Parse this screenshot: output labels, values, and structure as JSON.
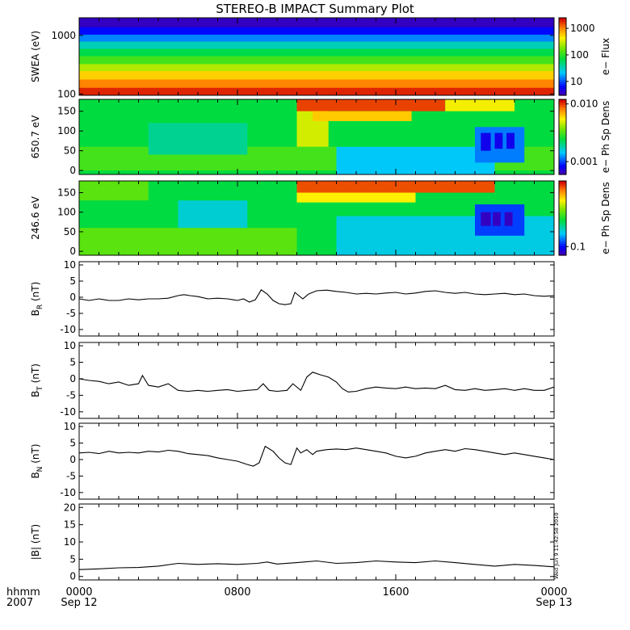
{
  "title": "STEREO-B IMPACT Summary Plot",
  "timestamp": "Wed Jun  9 11:42:58 2010",
  "chart_data": [
    {
      "type": "heatmap",
      "ylabel": "SWEA (eV)",
      "yscale": "log",
      "ylim": [
        95,
        2000
      ],
      "yticks": [
        {
          "v": 1000,
          "label": "1000"
        },
        {
          "v": 100,
          "label": "100"
        }
      ],
      "colorbar": {
        "label": "e− Flux",
        "scale": "log",
        "range": [
          3,
          2500
        ],
        "ticks": [
          {
            "v": 1000,
            "label": "1000"
          },
          {
            "v": 100,
            "label": "100"
          },
          {
            "v": 10,
            "label": "10"
          }
        ]
      },
      "rows": [
        {
          "from": 95,
          "to": 130,
          "value": 2000
        },
        {
          "from": 130,
          "to": 180,
          "value": 1100
        },
        {
          "from": 180,
          "to": 250,
          "value": 600
        },
        {
          "from": 250,
          "to": 330,
          "value": 280
        },
        {
          "from": 330,
          "to": 450,
          "value": 130
        },
        {
          "from": 450,
          "to": 600,
          "value": 70
        },
        {
          "from": 600,
          "to": 800,
          "value": 35
        },
        {
          "from": 800,
          "to": 1050,
          "value": 15
        },
        {
          "from": 1050,
          "to": 1400,
          "value": 7
        },
        {
          "from": 1400,
          "to": 2000,
          "value": 4
        }
      ]
    },
    {
      "type": "heatmap",
      "ylabel": "650.7 eV",
      "ylim": [
        -10,
        180
      ],
      "yticks": [
        {
          "v": 150,
          "label": "150"
        },
        {
          "v": 100,
          "label": "100"
        },
        {
          "v": 50,
          "label": "50"
        },
        {
          "v": 0,
          "label": "0"
        }
      ],
      "colorbar": {
        "label": "e− Ph Sp Dens",
        "scale": "log",
        "range": [
          0.0006,
          0.012
        ],
        "ticks": [
          {
            "v": 0.01,
            "label": "0.010"
          },
          {
            "v": 0.001,
            "label": "0.001"
          }
        ]
      },
      "background": 0.0025,
      "features": [
        {
          "t": [
            0.0,
            24.0
          ],
          "pa": [
            0,
            60
          ],
          "value": 0.0032
        },
        {
          "t": [
            3.5,
            8.5
          ],
          "pa": [
            40,
            120
          ],
          "value": 0.002
        },
        {
          "t": [
            11.0,
            12.6
          ],
          "pa": [
            60,
            180
          ],
          "value": 0.005
        },
        {
          "t": [
            11.0,
            18.5
          ],
          "pa": [
            150,
            180
          ],
          "value": 0.01
        },
        {
          "t": [
            11.8,
            16.8
          ],
          "pa": [
            125,
            150
          ],
          "value": 0.0065
        },
        {
          "t": [
            13.0,
            21.0
          ],
          "pa": [
            -10,
            60
          ],
          "value": 0.0015
        },
        {
          "t": [
            18.5,
            22.0
          ],
          "pa": [
            150,
            180
          ],
          "value": 0.0055
        },
        {
          "t": [
            20.0,
            22.5
          ],
          "pa": [
            20,
            110
          ],
          "value": 0.0012
        },
        {
          "t": [
            20.3,
            20.8
          ],
          "pa": [
            50,
            95
          ],
          "value": 0.0008
        },
        {
          "t": [
            21.0,
            21.4
          ],
          "pa": [
            55,
            95
          ],
          "value": 0.0008
        },
        {
          "t": [
            21.6,
            22.0
          ],
          "pa": [
            55,
            95
          ],
          "value": 0.0008
        }
      ]
    },
    {
      "type": "heatmap",
      "ylabel": "246.6 eV",
      "ylim": [
        -10,
        180
      ],
      "yticks": [
        {
          "v": 150,
          "label": "150"
        },
        {
          "v": 100,
          "label": "100"
        },
        {
          "v": 50,
          "label": "50"
        },
        {
          "v": 0,
          "label": "0"
        }
      ],
      "colorbar": {
        "label": "e− Ph Sp Dens",
        "scale": "log",
        "range": [
          0.07,
          1.5
        ],
        "ticks": [
          {
            "v": 0.1,
            "label": "0.1"
          }
        ]
      },
      "background": 0.3,
      "features": [
        {
          "t": [
            0.0,
            11.0
          ],
          "pa": [
            -10,
            60
          ],
          "value": 0.42
        },
        {
          "t": [
            0.0,
            3.5
          ],
          "pa": [
            130,
            180
          ],
          "value": 0.42
        },
        {
          "t": [
            5.0,
            8.5
          ],
          "pa": [
            60,
            130
          ],
          "value": 0.2
        },
        {
          "t": [
            11.0,
            21.0
          ],
          "pa": [
            150,
            180
          ],
          "value": 1.2
        },
        {
          "t": [
            11.0,
            17.0
          ],
          "pa": [
            125,
            150
          ],
          "value": 0.7
        },
        {
          "t": [
            13.0,
            24.0
          ],
          "pa": [
            -10,
            90
          ],
          "value": 0.19
        },
        {
          "t": [
            20.0,
            22.5
          ],
          "pa": [
            40,
            120
          ],
          "value": 0.12
        },
        {
          "t": [
            20.3,
            20.8
          ],
          "pa": [
            65,
            100
          ],
          "value": 0.08
        },
        {
          "t": [
            20.9,
            21.3
          ],
          "pa": [
            65,
            100
          ],
          "value": 0.08
        },
        {
          "t": [
            21.5,
            21.9
          ],
          "pa": [
            65,
            100
          ],
          "value": 0.08
        }
      ]
    },
    {
      "type": "line",
      "ylabel_main": "B",
      "ylabel_sub": "R",
      "ylabel_unit": " (nT)",
      "ylim": [
        -12,
        11
      ],
      "yticks": [
        {
          "v": 10,
          "label": "10"
        },
        {
          "v": 5,
          "label": "5"
        },
        {
          "v": 0,
          "label": "0"
        },
        {
          "v": -5,
          "label": "-5"
        },
        {
          "v": -10,
          "label": "-10"
        }
      ],
      "x": [
        0,
        0.5,
        1.0,
        1.5,
        2.0,
        2.5,
        3.0,
        3.5,
        4.0,
        4.5,
        5.0,
        5.3,
        5.6,
        6.0,
        6.5,
        7.0,
        7.5,
        7.8,
        8.0,
        8.3,
        8.6,
        8.9,
        9.2,
        9.5,
        9.8,
        10.1,
        10.4,
        10.7,
        10.9,
        11.1,
        11.3,
        11.6,
        12.0,
        12.5,
        13.0,
        13.5,
        14.0,
        14.5,
        15.0,
        15.5,
        16.0,
        16.5,
        17.0,
        17.5,
        18.0,
        18.5,
        19.0,
        19.5,
        20.0,
        20.5,
        21.0,
        21.5,
        22.0,
        22.5,
        23.0,
        23.5,
        24.0
      ],
      "y": [
        -0.5,
        -1.0,
        -0.5,
        -1.0,
        -1.0,
        -0.5,
        -0.8,
        -0.5,
        -0.5,
        -0.3,
        0.5,
        0.8,
        0.5,
        0.2,
        -0.5,
        -0.3,
        -0.5,
        -0.8,
        -1.0,
        -0.5,
        -1.5,
        -0.8,
        2.3,
        1.0,
        -1.0,
        -2.0,
        -2.3,
        -2.0,
        1.5,
        0.5,
        -0.5,
        1.0,
        2.0,
        2.2,
        1.8,
        1.5,
        1.0,
        1.2,
        1.0,
        1.3,
        1.5,
        1.0,
        1.3,
        1.8,
        2.0,
        1.5,
        1.2,
        1.5,
        1.0,
        0.8,
        1.0,
        1.2,
        0.8,
        1.0,
        0.5,
        0.3,
        0.5
      ]
    },
    {
      "type": "line",
      "ylabel_main": "B",
      "ylabel_sub": "T",
      "ylabel_unit": " (nT)",
      "ylim": [
        -12,
        11
      ],
      "yticks": [
        {
          "v": 10,
          "label": "10"
        },
        {
          "v": 5,
          "label": "5"
        },
        {
          "v": 0,
          "label": "0"
        },
        {
          "v": -5,
          "label": "-5"
        },
        {
          "v": -10,
          "label": "-10"
        }
      ],
      "x": [
        0,
        0.5,
        1.0,
        1.5,
        2.0,
        2.5,
        3.0,
        3.2,
        3.5,
        4.0,
        4.5,
        5.0,
        5.5,
        6.0,
        6.5,
        7.0,
        7.5,
        8.0,
        8.5,
        9.0,
        9.3,
        9.6,
        10.0,
        10.5,
        10.8,
        11.2,
        11.5,
        11.8,
        12.2,
        12.6,
        13.0,
        13.3,
        13.6,
        14.0,
        14.5,
        15.0,
        15.5,
        16.0,
        16.5,
        17.0,
        17.5,
        18.0,
        18.5,
        19.0,
        19.5,
        20.0,
        20.5,
        21.0,
        21.5,
        22.0,
        22.5,
        23.0,
        23.5,
        24.0
      ],
      "y": [
        0.0,
        -0.5,
        -0.8,
        -1.5,
        -1.0,
        -2.0,
        -1.5,
        1.0,
        -2.0,
        -2.5,
        -1.5,
        -3.5,
        -3.8,
        -3.5,
        -3.8,
        -3.5,
        -3.3,
        -3.8,
        -3.5,
        -3.3,
        -1.5,
        -3.5,
        -3.8,
        -3.5,
        -1.5,
        -3.5,
        0.5,
        2.0,
        1.2,
        0.5,
        -1.0,
        -3.0,
        -4.0,
        -3.8,
        -3.0,
        -2.5,
        -2.8,
        -3.0,
        -2.5,
        -3.0,
        -2.8,
        -3.0,
        -2.0,
        -3.3,
        -3.5,
        -3.0,
        -3.5,
        -3.3,
        -3.0,
        -3.5,
        -3.0,
        -3.5,
        -3.5,
        -2.5
      ]
    },
    {
      "type": "line",
      "ylabel_main": "B",
      "ylabel_sub": "N",
      "ylabel_unit": " (nT)",
      "ylim": [
        -12,
        11
      ],
      "yticks": [
        {
          "v": 10,
          "label": "10"
        },
        {
          "v": 5,
          "label": "5"
        },
        {
          "v": 0,
          "label": "0"
        },
        {
          "v": -5,
          "label": "-5"
        },
        {
          "v": -10,
          "label": "-10"
        }
      ],
      "x": [
        0,
        0.5,
        1.0,
        1.5,
        2.0,
        2.5,
        3.0,
        3.5,
        4.0,
        4.5,
        5.0,
        5.5,
        6.0,
        6.5,
        7.0,
        7.5,
        8.0,
        8.5,
        8.8,
        9.1,
        9.4,
        9.8,
        10.1,
        10.4,
        10.7,
        11.0,
        11.2,
        11.5,
        11.8,
        12.0,
        12.5,
        13.0,
        13.5,
        14.0,
        14.5,
        15.0,
        15.5,
        16.0,
        16.5,
        17.0,
        17.5,
        18.0,
        18.5,
        19.0,
        19.5,
        20.0,
        20.5,
        21.0,
        21.5,
        22.0,
        22.5,
        23.0,
        23.5,
        24.0
      ],
      "y": [
        2.0,
        2.2,
        1.8,
        2.5,
        2.0,
        2.2,
        2.0,
        2.5,
        2.3,
        2.8,
        2.5,
        1.8,
        1.5,
        1.2,
        0.5,
        0.0,
        -0.5,
        -1.5,
        -2.0,
        -1.0,
        4.0,
        2.5,
        0.5,
        -1.0,
        -1.5,
        3.5,
        2.0,
        3.0,
        1.5,
        2.5,
        3.0,
        3.2,
        3.0,
        3.5,
        3.0,
        2.5,
        2.0,
        1.0,
        0.5,
        1.0,
        2.0,
        2.5,
        3.0,
        2.5,
        3.3,
        3.0,
        2.5,
        2.0,
        1.5,
        2.0,
        1.5,
        1.0,
        0.5,
        0.0
      ]
    },
    {
      "type": "line",
      "ylabel_main": "|B|",
      "ylabel_sub": "",
      "ylabel_unit": " (nT)",
      "ylim": [
        -1,
        21
      ],
      "yticks": [
        {
          "v": 20,
          "label": "20"
        },
        {
          "v": 15,
          "label": "15"
        },
        {
          "v": 10,
          "label": "10"
        },
        {
          "v": 5,
          "label": "5"
        },
        {
          "v": 0,
          "label": "0"
        }
      ],
      "x": [
        0,
        1,
        2,
        3,
        4,
        5,
        6,
        7,
        8,
        9,
        9.5,
        10,
        11,
        12,
        13,
        14,
        15,
        16,
        17,
        18,
        19,
        20,
        21,
        22,
        23,
        24
      ],
      "y": [
        2.0,
        2.2,
        2.5,
        2.6,
        3.0,
        3.8,
        3.5,
        3.7,
        3.5,
        3.8,
        4.2,
        3.6,
        4.0,
        4.5,
        3.8,
        4.0,
        4.5,
        4.2,
        4.0,
        4.5,
        4.0,
        3.5,
        3.0,
        3.5,
        3.2,
        2.8
      ]
    }
  ],
  "xaxis": {
    "range": [
      0,
      24
    ],
    "ticks": [
      {
        "t": 0,
        "label": "0000",
        "date": "Sep 12"
      },
      {
        "t": 8,
        "label": "0800",
        "date": ""
      },
      {
        "t": 16,
        "label": "1600",
        "date": ""
      },
      {
        "t": 24,
        "label": "0000",
        "date": "Sep 13"
      }
    ],
    "label_line1": "hhmm",
    "label_line2": "2007"
  }
}
